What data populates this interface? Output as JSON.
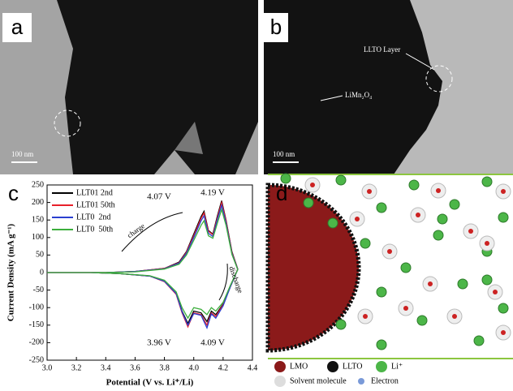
{
  "panels": {
    "a": {
      "label": "a",
      "scale_bar": "100 nm"
    },
    "b": {
      "label": "b",
      "layer_label": "LLTO Layer",
      "core_label": "LiMn₂O₄",
      "scale_bar": "100 nm"
    },
    "c": {
      "label": "c"
    },
    "d": {
      "label": "d",
      "legend": [
        "LMO",
        "LLTO",
        "Li⁺",
        "Solvent molecule",
        "Electron"
      ]
    }
  },
  "chart_data": {
    "type": "line",
    "x_label": "Potential (V vs. Li⁺/Li)",
    "y_label": "Current Density (mA g⁻¹)",
    "annotations": [
      "4.07 V",
      "4.19 V",
      "3.96 V",
      "4.09 V",
      "charge",
      "discharge"
    ],
    "x": [
      3.0,
      3.4,
      3.6,
      3.8,
      3.9,
      3.95,
      4.0,
      4.05,
      4.07,
      4.1,
      4.13,
      4.16,
      4.19,
      4.22,
      4.26,
      4.3,
      4.28,
      4.25,
      4.2,
      4.15,
      4.12,
      4.09,
      4.05,
      4.0,
      3.96,
      3.92,
      3.88,
      3.8,
      3.7,
      3.5,
      3.3,
      3.0
    ],
    "series": [
      {
        "name": "LLT01 2nd",
        "color": "#000000",
        "values": [
          0,
          0,
          3,
          12,
          30,
          60,
          110,
          160,
          175,
          120,
          110,
          160,
          205,
          150,
          60,
          10,
          -10,
          -40,
          -90,
          -120,
          -110,
          -140,
          -115,
          -110,
          -145,
          -110,
          -60,
          -25,
          -10,
          -3,
          0,
          0
        ]
      },
      {
        "name": "LLT01 50th",
        "color": "#e8202a",
        "values": [
          0,
          0,
          3,
          12,
          28,
          58,
          105,
          155,
          170,
          118,
          108,
          155,
          200,
          148,
          58,
          10,
          -10,
          -40,
          -92,
          -125,
          -115,
          -150,
          -120,
          -115,
          -155,
          -115,
          -62,
          -26,
          -10,
          -3,
          0,
          0
        ]
      },
      {
        "name": "LLT0  2nd",
        "color": "#2a3fd0",
        "values": [
          0,
          0,
          3,
          11,
          27,
          55,
          100,
          148,
          162,
          112,
          103,
          150,
          192,
          142,
          55,
          9,
          -10,
          -40,
          -95,
          -130,
          -118,
          -158,
          -122,
          -117,
          -150,
          -112,
          -60,
          -25,
          -10,
          -3,
          0,
          0
        ]
      },
      {
        "name": "LLT0  50th",
        "color": "#3cae3c",
        "values": [
          0,
          0,
          2,
          10,
          24,
          50,
          92,
          135,
          148,
          105,
          98,
          140,
          180,
          135,
          52,
          8,
          -9,
          -36,
          -85,
          -110,
          -100,
          -120,
          -105,
          -100,
          -130,
          -100,
          -55,
          -22,
          -9,
          -3,
          0,
          0
        ]
      }
    ],
    "xlim": [
      3.0,
      4.4
    ],
    "xticks": [
      {
        "value": 3,
        "label": "3.0"
      },
      3.2,
      3.4,
      3.6,
      3.8,
      {
        "value": 4,
        "label": "4.0"
      },
      4.2,
      4.4
    ],
    "ylim": [
      -250,
      250
    ],
    "yticks": [
      -250,
      -200,
      -150,
      -100,
      -50,
      0,
      50,
      100,
      150,
      200,
      250
    ]
  }
}
